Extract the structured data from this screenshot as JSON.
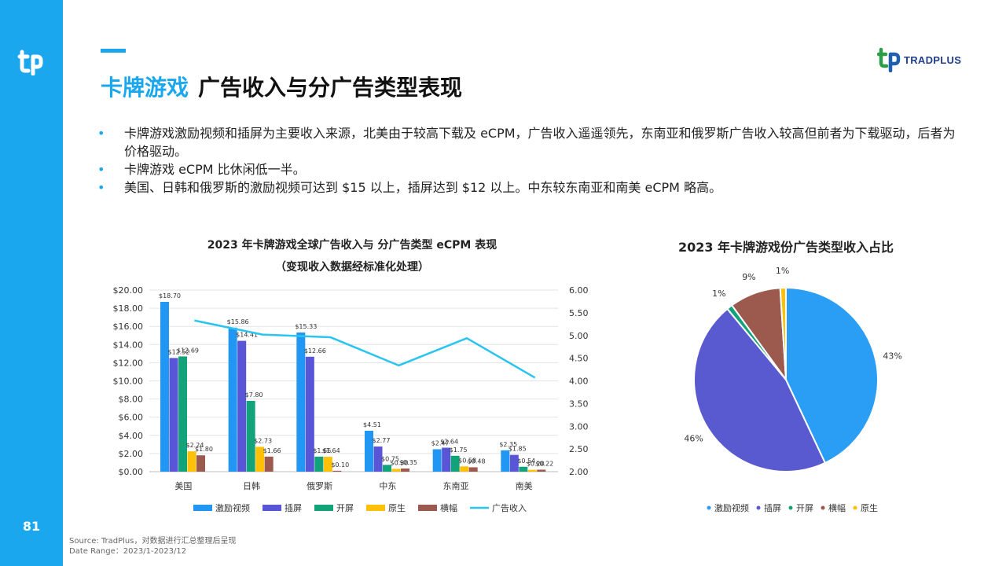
{
  "page": {
    "title_accent": "卡牌游戏",
    "title_rest": "广告收入与分广告类型表现",
    "page_number": "81",
    "brand_name": "TRADPLUS",
    "source_line1": "Source: TradPlus，对数据进行汇总整理后呈现",
    "source_line2": "Date Range：2023/1-2023/12",
    "accent_color": "#1aa7ee"
  },
  "bullets": [
    "卡牌游戏激励视频和插屏为主要收入来源，北美由于较高下载及 eCPM，广告收入遥遥领先，东南亚和俄罗斯广告收入较高但前者为下载驱动，后者为价格驱动。",
    "卡牌游戏 eCPM 比休闲低一半。",
    "美国、日韩和俄罗斯的激励视频可达到 $15 以上，插屏达到 $12 以上。中东较东南亚和南美 eCPM 略高。"
  ],
  "chart_data": [
    {
      "type": "bar",
      "title": "2023 年卡牌游戏全球广告收入与 分广告类型 eCPM 表现",
      "subtitle": "（变现收入数据经标准化处理）",
      "categories": [
        "美国",
        "日韩",
        "俄罗斯",
        "中东",
        "东南亚",
        "南美"
      ],
      "ylim": [
        0,
        20
      ],
      "y_ticks": [
        "$0.00",
        "$2.00",
        "$4.00",
        "$6.00",
        "$8.00",
        "$10.00",
        "$12.00",
        "$14.00",
        "$16.00",
        "$18.00",
        "$20.00"
      ],
      "y2lim": [
        2,
        6
      ],
      "y2_ticks": [
        "2.00",
        "2.50",
        "3.00",
        "3.50",
        "4.00",
        "4.50",
        "5.00",
        "5.50",
        "6.00"
      ],
      "grid": true,
      "legend_position": "bottom",
      "series": [
        {
          "name": "激励视频",
          "color": "#2196f3",
          "values": [
            18.7,
            15.86,
            15.33,
            4.51,
            2.47,
            2.35
          ],
          "labels": [
            "$18.70",
            "$15.86",
            "$15.33",
            "$4.51",
            "$2.47",
            "$2.35"
          ]
        },
        {
          "name": "插屏",
          "color": "#5856d6",
          "values": [
            12.52,
            14.41,
            12.66,
            2.77,
            2.64,
            1.85
          ],
          "labels": [
            "$12.52",
            "$14.41",
            "$12.66",
            "$2.77",
            "$2.64",
            "$1.85"
          ]
        },
        {
          "name": "开屏",
          "color": "#12a37a",
          "values": [
            12.69,
            7.8,
            1.66,
            0.75,
            1.75,
            0.54
          ],
          "labels": [
            "$12.69",
            "$7.80",
            "$1.66",
            "$0.75",
            "$1.75",
            "$0.54"
          ]
        },
        {
          "name": "原生",
          "color": "#ffc107",
          "values": [
            2.24,
            2.73,
            1.64,
            0.3,
            0.58,
            0.2
          ],
          "labels": [
            "$2.24",
            "$2.73",
            "$1.64",
            "$0.30",
            "$0.58",
            "$0.20"
          ]
        },
        {
          "name": "横幅",
          "color": "#9c5a4f",
          "values": [
            1.8,
            1.66,
            0.1,
            0.35,
            0.48,
            0.22
          ],
          "labels": [
            "$1.80",
            "$1.66",
            "$0.10",
            "$0.35",
            "$0.48",
            "$0.22"
          ]
        }
      ],
      "line_series": {
        "name": "广告收入",
        "color": "#29c4f0",
        "axis": "secondary",
        "values": [
          5.33,
          5.02,
          4.96,
          4.34,
          4.94,
          4.07
        ]
      }
    },
    {
      "type": "pie",
      "title": "2023 年卡牌游戏份广告类型收入占比",
      "legend_position": "bottom",
      "slices": [
        {
          "name": "激励视频",
          "value": 43,
          "label": "43%",
          "color": "#2a9df4"
        },
        {
          "name": "插屏",
          "value": 46,
          "label": "46%",
          "color": "#5a5ad0"
        },
        {
          "name": "开屏",
          "value": 1,
          "label": "1%",
          "color": "#12a37a"
        },
        {
          "name": "横幅",
          "value": 9,
          "label": "9%",
          "color": "#9c5a4f"
        },
        {
          "name": "原生",
          "value": 1,
          "label": "1%",
          "color": "#ffc107"
        }
      ]
    }
  ]
}
